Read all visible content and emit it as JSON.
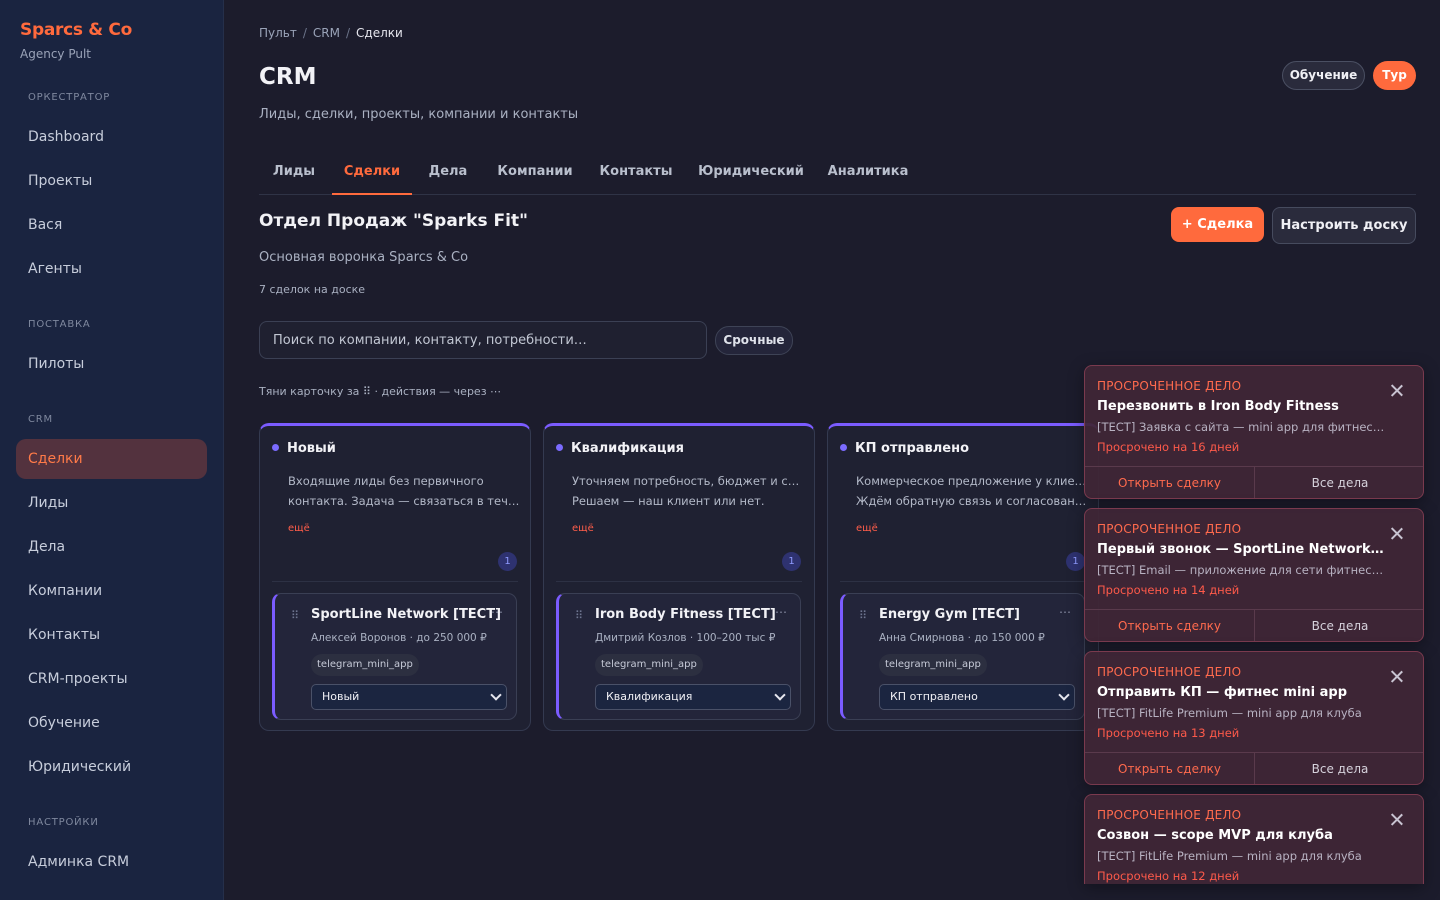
{
  "brand": {
    "name": "Sparcs & Co",
    "subtitle": "Agency Pult"
  },
  "sidebar": {
    "sections": [
      {
        "label": "ОРКЕСТРАТОР",
        "items": [
          "Dashboard",
          "Проекты",
          "Вася",
          "Агенты"
        ]
      },
      {
        "label": "ПОСТАВКА",
        "items": [
          "Пилоты"
        ]
      },
      {
        "label": "CRM",
        "items": [
          "Сделки",
          "Лиды",
          "Дела",
          "Компании",
          "Контакты",
          "CRM-проекты",
          "Обучение",
          "Юридический"
        ]
      },
      {
        "label": "НАСТРОЙКИ",
        "items": [
          "Админка CRM"
        ]
      }
    ],
    "active_item": "Сделки"
  },
  "breadcrumb": [
    "Пульт",
    "CRM",
    "Сделки"
  ],
  "breadcrumb_sep": "/",
  "header": {
    "title": "CRM",
    "subtitle": "Лиды, сделки, проекты, компании и контакты",
    "learn_label": "Обучение",
    "tour_label": "Тур"
  },
  "tabs": [
    "Лиды",
    "Сделки",
    "Дела",
    "Компании",
    "Контакты",
    "Юридический",
    "Аналитика"
  ],
  "active_tab": "Сделки",
  "board": {
    "title": "Отдел Продаж \"Sparks Fit\"",
    "subtitle": "Основная воронка Sparcs & Co",
    "count": "7 сделок на доске",
    "add_deal_label": "+ Сделка",
    "configure_label": "Настроить доску",
    "search_placeholder": "Поиск по компании, контакту, потребности…",
    "urgent_label": "Срочные",
    "hint": "Тяни карточку за ⠿ · действия — через ⋯"
  },
  "columns": [
    {
      "name": "Новый",
      "desc": [
        "Входящие лиды без первичного",
        "контакта. Задача — связаться в течение…"
      ],
      "more": "ещё",
      "count": "1",
      "card": {
        "title": "SportLine Network [TECT]",
        "meta": "Алексей Воронов · до 250 000 ₽",
        "tag": "telegram_mini_app",
        "stage": "Новый"
      }
    },
    {
      "name": "Квалификация",
      "desc": [
        "Уточняем потребность, бюджет и сроки.",
        "Решаем — наш клиент или нет."
      ],
      "more": "ещё",
      "count": "1",
      "card": {
        "title": "Iron Body Fitness [TECT]",
        "meta": "Дмитрий Козлов · 100–200 тыс ₽",
        "tag": "telegram_mini_app",
        "stage": "Квалификация"
      }
    },
    {
      "name": "КП отправлено",
      "desc": [
        "Коммерческое предложение у клиента.",
        "Ждём обратную связь и согласование…"
      ],
      "more": "ещё",
      "count": "1",
      "card": {
        "title": "Energy Gym [TECT]",
        "meta": "Анна Смирнова · до 150 000 ₽",
        "tag": "telegram_mini_app",
        "stage": "КП отправлено"
      }
    }
  ],
  "toasts": [
    {
      "kicker": "ПРОСРОЧЕННОЕ ДЕЛО",
      "title": "Перезвонить в Iron Body Fitness",
      "desc": "[TECT] Заявка с сайта — mini app для фитнес-клу…",
      "overdue": "Просрочено на 16 дней",
      "open_label": "Открыть сделку",
      "all_label": "Все дела"
    },
    {
      "kicker": "ПРОСРОЧЕННОЕ ДЕЛО",
      "title": "Первый звонок — SportLine Network [T…",
      "desc": "[TECT] Email — приложение для сети фитнес-клу…",
      "overdue": "Просрочено на 14 дней",
      "open_label": "Открыть сделку",
      "all_label": "Все дела"
    },
    {
      "kicker": "ПРОСРОЧЕННОЕ ДЕЛО",
      "title": "Отправить КП — фитнес mini app",
      "desc": "[TECT] FitLife Premium — mini app для клуба",
      "overdue": "Просрочено на 13 дней",
      "open_label": "Открыть сделку",
      "all_label": "Все дела"
    },
    {
      "kicker": "ПРОСРОЧЕННОЕ ДЕЛО",
      "title": "Созвон — scope MVP для клуба",
      "desc": "[TECT] FitLife Premium — mini app для клуба",
      "overdue": "Просрочено на 12 дней"
    }
  ],
  "colors": {
    "accent": "#ff6a3d",
    "column_accent": "#7b5cff",
    "overdue": "#ff5a4a"
  },
  "icons": {
    "close": "close-icon",
    "drag": "drag-handle-icon",
    "menu": "more-icon",
    "chevron": "chevron-down-icon"
  }
}
